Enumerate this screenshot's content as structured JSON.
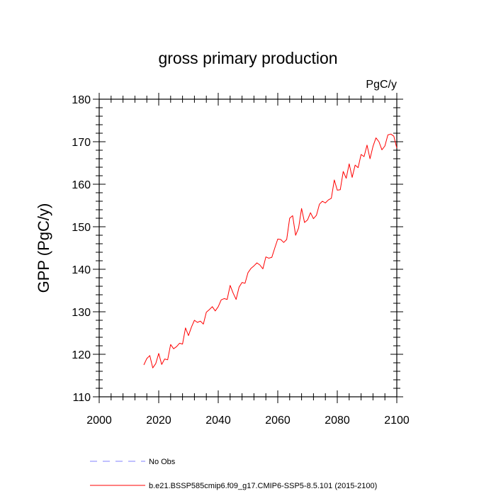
{
  "chart_data": {
    "type": "line",
    "title": "gross primary production",
    "units": "PgC/y",
    "xlabel": "",
    "ylabel": "GPP  (PgC/y)",
    "xlim": [
      2000,
      2100
    ],
    "ylim": [
      110,
      180
    ],
    "xticks": [
      2000,
      2020,
      2040,
      2060,
      2080,
      2100
    ],
    "yticks": [
      110,
      120,
      130,
      140,
      150,
      160,
      170,
      180
    ],
    "grid": false,
    "legend_position": "bottom",
    "series": [
      {
        "name": "No Obs",
        "color": "#8080ff",
        "style": "dashed",
        "x": [],
        "values": []
      },
      {
        "name": "b.e21.BSSP585cmip6.f09_g17.CMIP6-SSP5-8.5.101 (2015-2100)",
        "color": "#ff0000",
        "style": "solid",
        "x": [
          2015,
          2016,
          2017,
          2018,
          2019,
          2020,
          2021,
          2022,
          2023,
          2024,
          2025,
          2026,
          2027,
          2028,
          2029,
          2030,
          2031,
          2032,
          2033,
          2034,
          2035,
          2036,
          2037,
          2038,
          2039,
          2040,
          2041,
          2042,
          2043,
          2044,
          2045,
          2046,
          2047,
          2048,
          2049,
          2050,
          2051,
          2052,
          2053,
          2054,
          2055,
          2056,
          2057,
          2058,
          2059,
          2060,
          2061,
          2062,
          2063,
          2064,
          2065,
          2066,
          2067,
          2068,
          2069,
          2070,
          2071,
          2072,
          2073,
          2074,
          2075,
          2076,
          2077,
          2078,
          2079,
          2080,
          2081,
          2082,
          2083,
          2084,
          2085,
          2086,
          2087,
          2088,
          2089,
          2090,
          2091,
          2092,
          2093,
          2094,
          2095,
          2096,
          2097,
          2098,
          2099,
          2100
        ],
        "values": [
          117.5,
          119.0,
          119.7,
          116.8,
          117.8,
          120.2,
          117.6,
          118.9,
          118.7,
          122.3,
          121.3,
          121.8,
          122.6,
          122.4,
          126.2,
          124.4,
          126.4,
          128.0,
          127.5,
          127.8,
          127.1,
          129.9,
          130.5,
          131.2,
          130.2,
          131.2,
          132.8,
          133.1,
          132.9,
          136.2,
          134.4,
          132.9,
          135.8,
          136.9,
          136.7,
          139.2,
          140.2,
          140.8,
          141.5,
          141.0,
          140.1,
          142.9,
          142.6,
          142.8,
          145.0,
          147.1,
          147.0,
          146.3,
          147.0,
          152.0,
          152.6,
          148.0,
          149.7,
          154.3,
          151.0,
          151.6,
          153.3,
          151.9,
          152.7,
          155.3,
          156.0,
          155.6,
          156.3,
          156.7,
          161.0,
          158.6,
          158.7,
          163.0,
          161.4,
          164.8,
          161.6,
          164.5,
          163.9,
          167.0,
          166.5,
          169.2,
          166.0,
          168.9,
          170.9,
          170.0,
          168.1,
          169.0,
          171.6,
          171.8,
          171.3,
          168.5
        ]
      }
    ]
  }
}
